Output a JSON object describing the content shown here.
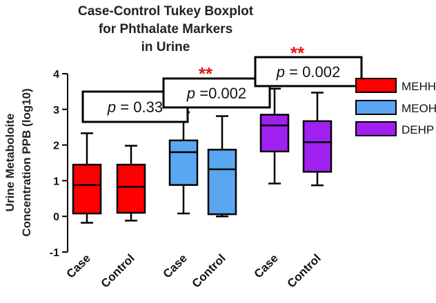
{
  "chart_data": {
    "type": "boxplot",
    "title_lines": [
      "Case-Control Tukey Boxplot",
      "for Phthalate Markers",
      "in Urine"
    ],
    "ylabel_lines": [
      "Urine Metaboloite",
      "Concentration PPB (log10)"
    ],
    "ylim": [
      -1,
      4
    ],
    "yticks": [
      "4",
      "3",
      "2",
      "1",
      "0",
      "-1"
    ],
    "ytick_values": [
      4,
      3,
      2,
      1,
      0,
      -1
    ],
    "grid": false,
    "legend_position": "right",
    "groups": [
      {
        "name": "MEHHP",
        "color": "#ff0000",
        "pvalue": "p = 0.33",
        "p_prefix": "p",
        "p_rest": " = 0.33",
        "stars": "",
        "boxes": [
          {
            "label": "Case",
            "min": -0.18,
            "q1": 0.08,
            "median": 0.88,
            "q3": 1.45,
            "max": 2.33
          },
          {
            "label": "Control",
            "min": -0.12,
            "q1": 0.1,
            "median": 0.83,
            "q3": 1.45,
            "max": 1.98
          }
        ]
      },
      {
        "name": "MEOHP",
        "color": "#5aa6f0",
        "pvalue": "p =0.002",
        "p_prefix": "p",
        "p_rest": " =0.002",
        "stars": "**",
        "boxes": [
          {
            "label": "Case",
            "min": 0.08,
            "q1": 0.88,
            "median": 1.8,
            "q3": 2.13,
            "max": 2.92
          },
          {
            "label": "Control",
            "min": 0.0,
            "q1": 0.06,
            "median": 1.32,
            "q3": 1.87,
            "max": 2.81
          }
        ]
      },
      {
        "name": "DEHP",
        "color": "#a020f0",
        "pvalue": "p = 0.002",
        "p_prefix": "p",
        "p_rest": " = 0.002",
        "stars": "**",
        "boxes": [
          {
            "label": "Case",
            "min": 0.92,
            "q1": 1.82,
            "median": 2.55,
            "q3": 2.85,
            "max": 3.58
          },
          {
            "label": "Control",
            "min": 0.87,
            "q1": 1.25,
            "median": 2.08,
            "q3": 2.67,
            "max": 3.47
          }
        ]
      }
    ]
  }
}
